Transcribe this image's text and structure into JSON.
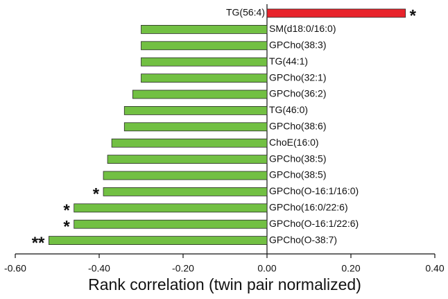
{
  "chart_data": {
    "type": "barh",
    "x_label": "Rank correlation (twin pair normalized)",
    "categories": [
      "TG(56:4)",
      "SM(d18:0/16:0)",
      "GPCho(38:3)",
      "TG(44:1)",
      "GPCho(32:1)",
      "GPCho(36:2)",
      "TG(46:0)",
      "GPCho(38:6)",
      "ChoE(16:0)",
      "GPCho(38:5)",
      "GPCho(38:5)",
      "GPCho(O-16:1/16:0)",
      "GPCho(16:0/22:6)",
      "GPCho(O-16:1/22:6)",
      "GPCho(O-38:7)"
    ],
    "values": [
      0.33,
      -0.3,
      -0.3,
      -0.3,
      -0.3,
      -0.32,
      -0.34,
      -0.34,
      -0.37,
      -0.38,
      -0.39,
      -0.39,
      -0.46,
      -0.46,
      -0.52
    ],
    "positive_color": "#e8232b",
    "negative_color": "#72c043",
    "annotations": [
      {
        "category": "TG(56:4)",
        "text": "*"
      },
      {
        "category": "GPCho(O-16:1/16:0)",
        "text": "*"
      },
      {
        "category": "GPCho(16:0/22:6)",
        "text": "*"
      },
      {
        "category": "GPCho(O-16:1/22:6)",
        "text": "*"
      },
      {
        "category": "GPCho(O-38:7)",
        "text": "**"
      }
    ],
    "xlim": [
      -0.6,
      0.4
    ],
    "xticks": [
      {
        "value": -0.6,
        "label": "-0.60"
      },
      {
        "value": -0.4,
        "label": "-0.40"
      },
      {
        "value": -0.2,
        "label": "-0.20"
      },
      {
        "value": 0,
        "label": "0.00"
      },
      {
        "value": 0.2,
        "label": "0.20"
      },
      {
        "value": 0.4,
        "label": "0.40"
      }
    ]
  }
}
